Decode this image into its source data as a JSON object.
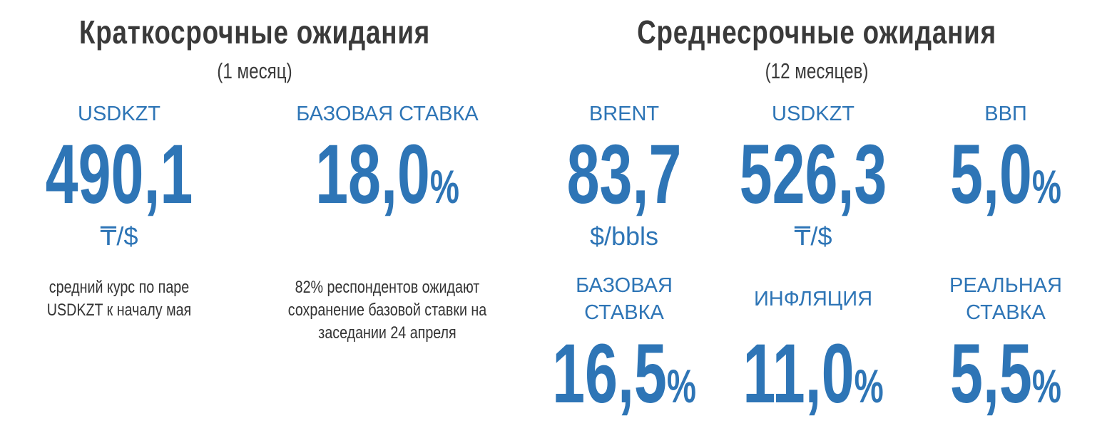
{
  "sections": [
    {
      "title": "Краткосрочные ожидания",
      "subtitle": "(1 месяц)",
      "items": [
        {
          "label": "USDKZT",
          "value": "490,1",
          "unit": "₸/$",
          "note": "средний курс по паре USDKZT к началу мая"
        },
        {
          "label": "БАЗОВАЯ СТАВКА",
          "value": "18,0",
          "unit": "%",
          "note": "82% респондентов ожидают сохранение базовой ставки на заседании 24 апреля"
        }
      ]
    },
    {
      "title": "Среднесрочные ожидания",
      "subtitle": "(12 месяцев)",
      "items": [
        {
          "label": "BRENT",
          "value": "83,7",
          "unit": "$/bbls"
        },
        {
          "label": "USDKZT",
          "value": "526,3",
          "unit": "₸/$"
        },
        {
          "label": "ВВП",
          "value": "5,0",
          "unit": "%"
        },
        {
          "label": "БАЗОВАЯ СТАВКА",
          "value": "16,5",
          "unit": "%"
        },
        {
          "label": "ИНФЛЯЦИЯ",
          "value": "11,0",
          "unit": "%"
        },
        {
          "label": "РЕАЛЬНАЯ СТАВКА",
          "value": "5,5",
          "unit": "%"
        }
      ]
    }
  ]
}
